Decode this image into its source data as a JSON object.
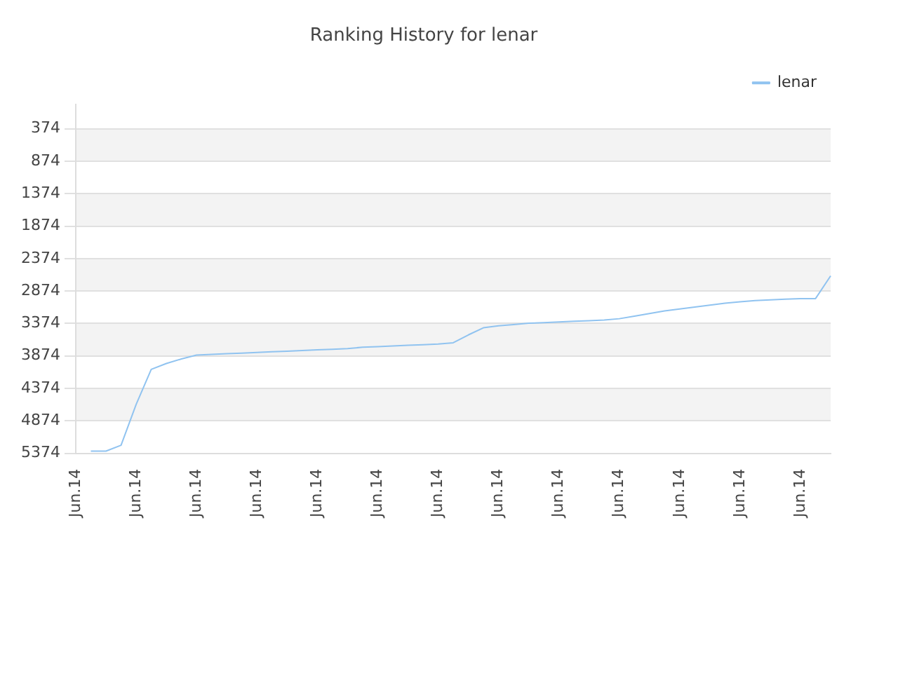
{
  "chart_data": {
    "type": "line",
    "title": "Ranking History for lenar",
    "categories": [
      "Jun.14",
      null,
      null,
      null,
      "Jun.14",
      null,
      null,
      null,
      "Jun.14",
      null,
      null,
      null,
      "Jun.14",
      null,
      null,
      null,
      "Jun.14",
      null,
      null,
      null,
      "Jun.14",
      null,
      null,
      null,
      "Jun.14",
      null,
      null,
      null,
      "Jun.14",
      null,
      null,
      null,
      "Jun.14",
      null,
      null,
      null,
      "Jun.14",
      null,
      null,
      null,
      "Jun.14",
      null,
      null,
      null,
      "Jun.14",
      null,
      null,
      null,
      "Jun.14",
      null,
      null
    ],
    "series": [
      {
        "name": "lenar",
        "color": "#90c3f0",
        "values": [
          null,
          5340,
          5340,
          5250,
          4620,
          4080,
          3990,
          3920,
          3860,
          3850,
          3840,
          3830,
          3820,
          3810,
          3800,
          3790,
          3780,
          3770,
          3760,
          3740,
          3730,
          3720,
          3710,
          3700,
          3690,
          3670,
          3550,
          3440,
          3410,
          3390,
          3370,
          3360,
          3350,
          3340,
          3330,
          3320,
          3300,
          3260,
          3220,
          3180,
          3150,
          3120,
          3090,
          3060,
          3040,
          3020,
          3010,
          3000,
          2990,
          2990,
          2640
        ]
      }
    ],
    "ylim": [
      5374,
      1
    ],
    "yticks": [
      374,
      874,
      1374,
      1874,
      2374,
      2874,
      3374,
      3874,
      4374,
      4874,
      5374
    ],
    "grid": "y",
    "legend": "top right",
    "marker": "none",
    "line_style": "solid"
  }
}
